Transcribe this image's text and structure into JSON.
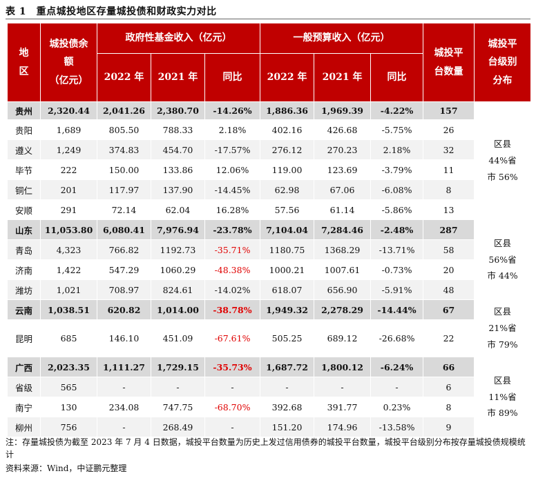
{
  "title": "表 1　重点城投地区存量城投债和财政实力对比",
  "headers": {
    "region": "地区",
    "debt": "城投债余额（亿元）",
    "gov_fund": "政府性基金收入（亿元）",
    "general": "一般预算收入（亿元）",
    "y2022": "2022 年",
    "y2021": "2021 年",
    "yoy": "同比",
    "platforms": "城投平台数量",
    "level": "城投平台级别分布"
  },
  "rows": [
    {
      "name": "贵州",
      "debt": "2,320.44",
      "gf22": "2,041.26",
      "gf21": "2,380.70",
      "gfy": "-14.26%",
      "gb22": "1,886.36",
      "gb21": "1,969.39",
      "gby": "-4.22%",
      "plat": "157",
      "type": "prov",
      "gfyRed": false
    },
    {
      "name": "贵阳",
      "debt": "1,689",
      "gf22": "805.50",
      "gf21": "788.33",
      "gfy": "2.18%",
      "gb22": "402.16",
      "gb21": "426.68",
      "gby": "-5.75%",
      "plat": "26",
      "type": "even",
      "gfyRed": false
    },
    {
      "name": "遵义",
      "debt": "1,249",
      "gf22": "374.83",
      "gf21": "454.70",
      "gfy": "-17.57%",
      "gb22": "276.12",
      "gb21": "270.23",
      "gby": "2.18%",
      "plat": "32",
      "type": "odd",
      "gfyRed": false
    },
    {
      "name": "毕节",
      "debt": "222",
      "gf22": "150.00",
      "gf21": "133.86",
      "gfy": "12.06%",
      "gb22": "119.00",
      "gb21": "123.69",
      "gby": "-3.79%",
      "plat": "11",
      "type": "even",
      "gfyRed": false
    },
    {
      "name": "铜仁",
      "debt": "201",
      "gf22": "117.97",
      "gf21": "137.90",
      "gfy": "-14.45%",
      "gb22": "62.98",
      "gb21": "67.06",
      "gby": "-6.08%",
      "plat": "8",
      "type": "odd",
      "gfyRed": false
    },
    {
      "name": "安顺",
      "debt": "291",
      "gf22": "72.14",
      "gf21": "62.04",
      "gfy": "16.28%",
      "gb22": "57.56",
      "gb21": "61.14",
      "gby": "-5.86%",
      "plat": "13",
      "type": "even",
      "gfyRed": false
    },
    {
      "name": "山东",
      "debt": "11,053.80",
      "gf22": "6,080.41",
      "gf21": "7,976.94",
      "gfy": "-23.78%",
      "gb22": "7,104.04",
      "gb21": "7,284.46",
      "gby": "-2.48%",
      "plat": "287",
      "type": "prov",
      "gfyRed": false
    },
    {
      "name": "青岛",
      "debt": "4,323",
      "gf22": "766.82",
      "gf21": "1192.73",
      "gfy": "-35.71%",
      "gb22": "1180.75",
      "gb21": "1368.29",
      "gby": "-13.71%",
      "plat": "58",
      "type": "odd",
      "gfyRed": true
    },
    {
      "name": "济南",
      "debt": "1,422",
      "gf22": "547.29",
      "gf21": "1060.29",
      "gfy": "-48.38%",
      "gb22": "1000.21",
      "gb21": "1007.61",
      "gby": "-0.73%",
      "plat": "20",
      "type": "even",
      "gfyRed": true
    },
    {
      "name": "潍坊",
      "debt": "1,021",
      "gf22": "708.97",
      "gf21": "824.61",
      "gfy": "-14.02%",
      "gb22": "618.07",
      "gb21": "656.90",
      "gby": "-5.91%",
      "plat": "48",
      "type": "odd",
      "gfyRed": false
    },
    {
      "name": "云南",
      "debt": "1,038.51",
      "gf22": "620.82",
      "gf21": "1,014.00",
      "gfy": "-38.78%",
      "gb22": "1,949.32",
      "gb21": "2,278.29",
      "gby": "-14.44%",
      "plat": "67",
      "type": "prov",
      "gfyRed": true
    },
    {
      "name": "昆明",
      "debt": "685",
      "gf22": "146.10",
      "gf21": "451.09",
      "gfy": "-67.61%",
      "gb22": "505.25",
      "gb21": "689.12",
      "gby": "-26.68%",
      "plat": "22",
      "type": "even",
      "gfyRed": true
    },
    {
      "name": "广西",
      "debt": "2,023.35",
      "gf22": "1,111.27",
      "gf21": "1,729.15",
      "gfy": "-35.73%",
      "gb22": "1,687.72",
      "gb21": "1,800.12",
      "gby": "-6.24%",
      "plat": "66",
      "type": "prov",
      "gfyRed": true
    },
    {
      "name": "省级",
      "debt": "565",
      "gf22": "-",
      "gf21": "-",
      "gfy": "-",
      "gb22": "-",
      "gb21": "-",
      "gby": "-",
      "plat": "6",
      "type": "odd",
      "gfyRed": false
    },
    {
      "name": "南宁",
      "debt": "130",
      "gf22": "234.08",
      "gf21": "747.75",
      "gfy": "-68.70%",
      "gb22": "392.68",
      "gb21": "391.77",
      "gby": "0.23%",
      "plat": "8",
      "type": "even",
      "gfyRed": true
    },
    {
      "name": "柳州",
      "debt": "756",
      "gf22": "-",
      "gf21": "268.49",
      "gfy": "-",
      "gb22": "151.20",
      "gb21": "174.96",
      "gby": "-13.58%",
      "plat": "9",
      "type": "odd",
      "gfyRed": false
    }
  ],
  "distribution": [
    {
      "start": 0,
      "span": 6,
      "text": "区县\n44%省\n市 56%"
    },
    {
      "start": 6,
      "span": 4,
      "text": "区县\n56%省\n市 44%"
    },
    {
      "start": 10,
      "span": 2,
      "text": "区县\n21%省\n市 79%"
    },
    {
      "start": 12,
      "span": 4,
      "text": "区县\n11%省\n市 89%"
    }
  ],
  "note": "注：存量城投债为截至 2023 年 7 月 4 日数据，城投平台数量为历史上发过信用债券的城投平台数量，城投平台级别分布按存量城投债规模统计",
  "source": "资料来源：Wind，中证鹏元整理"
}
